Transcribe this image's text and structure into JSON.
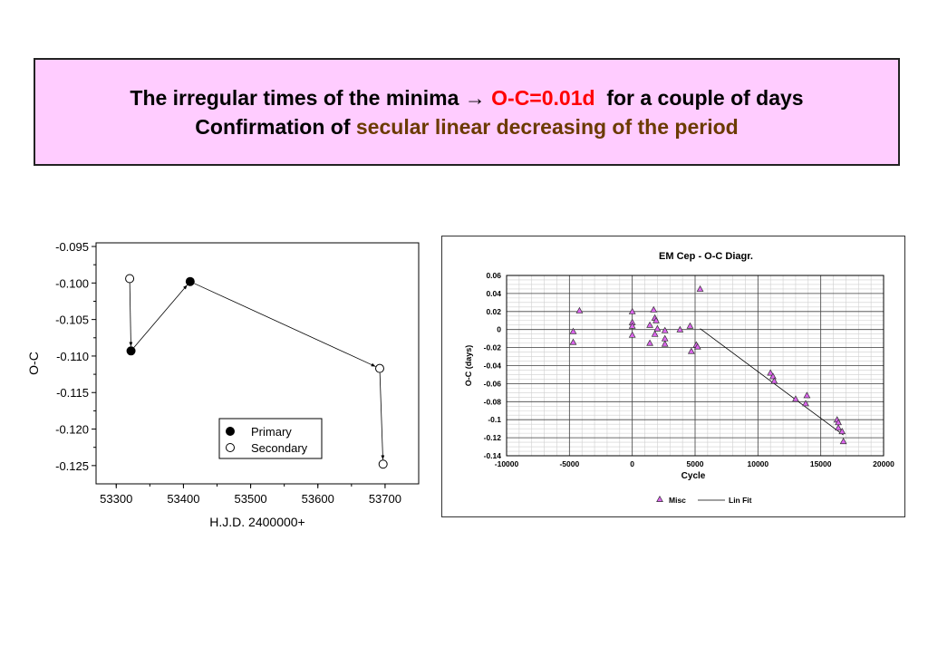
{
  "header": {
    "line1_part1": "The irregular times of the minima ",
    "arrow": "→",
    "line1_red": "O-C=0.01d",
    "line1_part2": "  for a couple of days",
    "line2_part1": "Confirmation of ",
    "line2_olive": "secular linear decreasing of the period",
    "accent_red": "#ff0000",
    "accent_olive": "#6b3a00",
    "box_bg": "#ffccff"
  },
  "chart_data": [
    {
      "type": "scatter",
      "title": "",
      "xlabel": "H.J.D. 2400000+",
      "ylabel": "O-C",
      "xlim": [
        53270,
        53750
      ],
      "ylim": [
        -0.1275,
        -0.0945
      ],
      "xticks": [
        "53300",
        "53400",
        "53500",
        "53600",
        "53700"
      ],
      "yticks": [
        "-0.095",
        "-0.100",
        "-0.105",
        "-0.110",
        "-0.115",
        "-0.120",
        "-0.125"
      ],
      "legend": {
        "position": "bottom-right",
        "entries": [
          "Primary",
          "Secondary"
        ]
      },
      "points": [
        {
          "x": 53320,
          "y": -0.0994,
          "series": "Secondary"
        },
        {
          "x": 53322,
          "y": -0.1093,
          "series": "Primary"
        },
        {
          "x": 53410,
          "y": -0.0998,
          "series": "Primary"
        },
        {
          "x": 53692,
          "y": -0.1117,
          "series": "Secondary"
        },
        {
          "x": 53697,
          "y": -0.1248,
          "series": "Secondary"
        }
      ],
      "path_order": [
        0,
        1,
        2,
        3,
        4
      ]
    },
    {
      "type": "scatter",
      "title": "EM Cep - O-C Diagr.",
      "xlabel": "Cycle",
      "ylabel": "O-C  (days)",
      "xlim": [
        -10000,
        20000
      ],
      "ylim": [
        -0.14,
        0.06
      ],
      "xticks": [
        "-10000",
        "-5000",
        "0",
        "5000",
        "10000",
        "15000",
        "20000"
      ],
      "yticks": [
        "0.06",
        "0.04",
        "0.02",
        "0",
        "-0.02",
        "-0.04",
        "-0.06",
        "-0.08",
        "-0.1",
        "-0.12",
        "-0.14"
      ],
      "grid": true,
      "legend": {
        "position": "bottom-center",
        "entries": [
          "Misc",
          "Lin Fit"
        ]
      },
      "series": [
        {
          "name": "Misc",
          "points": [
            [
              -4700,
              -0.002
            ],
            [
              -4700,
              -0.014
            ],
            [
              -4200,
              0.021
            ],
            [
              0,
              0.02
            ],
            [
              0,
              0.008
            ],
            [
              0,
              0.004
            ],
            [
              0,
              -0.006
            ],
            [
              1400,
              0.005
            ],
            [
              1400,
              -0.015
            ],
            [
              1700,
              0.022
            ],
            [
              1800,
              0.013
            ],
            [
              1800,
              -0.005
            ],
            [
              1900,
              0.01
            ],
            [
              2000,
              0.001
            ],
            [
              2600,
              -0.001
            ],
            [
              2600,
              -0.01
            ],
            [
              2600,
              -0.016
            ],
            [
              3800,
              0.0
            ],
            [
              4600,
              0.004
            ],
            [
              4700,
              -0.024
            ],
            [
              5100,
              -0.017
            ],
            [
              5200,
              -0.019
            ],
            [
              5400,
              0.045
            ],
            [
              11000,
              -0.048
            ],
            [
              11200,
              -0.052
            ],
            [
              11300,
              -0.057
            ],
            [
              13000,
              -0.077
            ],
            [
              13800,
              -0.082
            ],
            [
              13900,
              -0.073
            ],
            [
              16300,
              -0.1
            ],
            [
              16400,
              -0.103
            ],
            [
              16400,
              -0.109
            ],
            [
              16700,
              -0.113
            ],
            [
              16800,
              -0.124
            ]
          ]
        },
        {
          "name": "Lin Fit",
          "line": [
            [
              5400,
              0.001
            ],
            [
              16800,
              -0.117
            ]
          ]
        }
      ]
    }
  ]
}
